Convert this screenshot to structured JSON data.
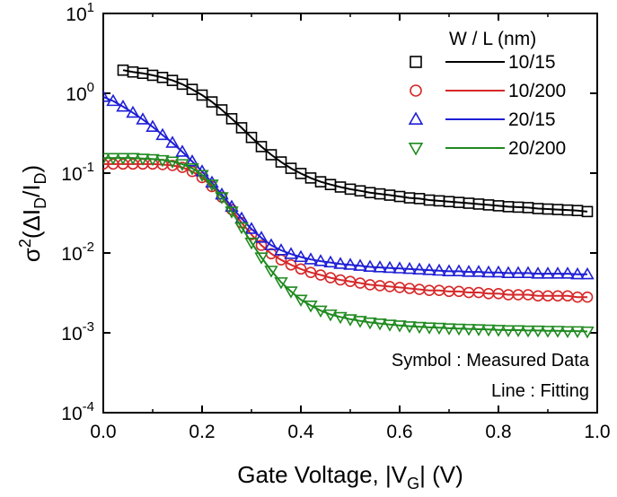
{
  "chart_data": {
    "type": "scatter",
    "xlabel_parts": {
      "main": "Gate Voltage, |V",
      "sub": "G",
      "end": "| (V)"
    },
    "ylabel_parts": {
      "sigma": "σ",
      "sup": "2",
      "open": "(ΔI",
      "sub1": "D",
      "slash": "/I",
      "sub2": "D",
      "close": ")"
    },
    "xlim": [
      0.0,
      1.0
    ],
    "ylim": [
      0.0001,
      10
    ],
    "y_scale": "log",
    "x_ticks": [
      "0.0",
      "0.2",
      "0.4",
      "0.6",
      "0.8",
      "1.0"
    ],
    "y_ticks": [
      {
        "base": "10",
        "exp": "1"
      },
      {
        "base": "10",
        "exp": "0"
      },
      {
        "base": "10",
        "exp": "-1"
      },
      {
        "base": "10",
        "exp": "-2"
      },
      {
        "base": "10",
        "exp": "-3"
      },
      {
        "base": "10",
        "exp": "-4"
      }
    ],
    "legend": {
      "title": "W / L (nm)",
      "placement": "top-right",
      "entries": [
        {
          "label": "10/15",
          "marker": "square",
          "color": "#000000"
        },
        {
          "label": "10/200",
          "marker": "circle",
          "color": "#d62728"
        },
        {
          "label": "20/15",
          "marker": "triangle-up",
          "color": "#1f1fd6"
        },
        {
          "label": "20/200",
          "marker": "triangle-down",
          "color": "#1f8a1f"
        }
      ]
    },
    "annotations": [
      "Symbol : Measured Data",
      "Line : Fitting"
    ],
    "series": [
      {
        "name": "10/15",
        "color": "#000000",
        "marker": "square",
        "x": [
          0.04,
          0.06,
          0.08,
          0.1,
          0.12,
          0.14,
          0.16,
          0.18,
          0.2,
          0.22,
          0.24,
          0.26,
          0.28,
          0.3,
          0.32,
          0.34,
          0.36,
          0.38,
          0.4,
          0.42,
          0.44,
          0.46,
          0.48,
          0.5,
          0.52,
          0.54,
          0.56,
          0.58,
          0.6,
          0.62,
          0.64,
          0.66,
          0.68,
          0.7,
          0.72,
          0.74,
          0.76,
          0.78,
          0.8,
          0.82,
          0.84,
          0.86,
          0.88,
          0.9,
          0.92,
          0.94,
          0.96,
          0.98
        ],
        "y": [
          1.95,
          1.85,
          1.78,
          1.68,
          1.58,
          1.45,
          1.3,
          1.12,
          0.95,
          0.78,
          0.62,
          0.48,
          0.37,
          0.28,
          0.215,
          0.17,
          0.138,
          0.115,
          0.099,
          0.087,
          0.078,
          0.072,
          0.067,
          0.063,
          0.06,
          0.057,
          0.055,
          0.053,
          0.051,
          0.049,
          0.048,
          0.046,
          0.045,
          0.044,
          0.043,
          0.042,
          0.041,
          0.04,
          0.039,
          0.038,
          0.0375,
          0.037,
          0.036,
          0.0355,
          0.035,
          0.0345,
          0.034,
          0.033
        ]
      },
      {
        "name": "10/200",
        "color": "#d62728",
        "marker": "circle",
        "x": [
          0.0,
          0.02,
          0.04,
          0.06,
          0.08,
          0.1,
          0.12,
          0.14,
          0.16,
          0.18,
          0.2,
          0.22,
          0.24,
          0.26,
          0.28,
          0.3,
          0.32,
          0.34,
          0.36,
          0.38,
          0.4,
          0.42,
          0.44,
          0.46,
          0.48,
          0.5,
          0.52,
          0.54,
          0.56,
          0.58,
          0.6,
          0.62,
          0.64,
          0.66,
          0.68,
          0.7,
          0.72,
          0.74,
          0.76,
          0.78,
          0.8,
          0.82,
          0.84,
          0.86,
          0.88,
          0.9,
          0.92,
          0.94,
          0.96,
          0.98
        ],
        "y": [
          0.13,
          0.13,
          0.13,
          0.13,
          0.13,
          0.13,
          0.128,
          0.125,
          0.118,
          0.105,
          0.088,
          0.068,
          0.05,
          0.035,
          0.024,
          0.017,
          0.0125,
          0.0098,
          0.0082,
          0.0071,
          0.0063,
          0.0057,
          0.0053,
          0.0049,
          0.0046,
          0.0044,
          0.0042,
          0.004,
          0.0039,
          0.0038,
          0.0037,
          0.0036,
          0.0035,
          0.0034,
          0.0034,
          0.0033,
          0.0033,
          0.0032,
          0.0032,
          0.0031,
          0.0031,
          0.003,
          0.003,
          0.003,
          0.0029,
          0.0029,
          0.0029,
          0.0029,
          0.0028,
          0.0028
        ]
      },
      {
        "name": "20/15",
        "color": "#1f1fd6",
        "marker": "triangle-up",
        "x": [
          0.0,
          0.02,
          0.04,
          0.06,
          0.08,
          0.1,
          0.12,
          0.14,
          0.16,
          0.18,
          0.2,
          0.22,
          0.24,
          0.26,
          0.28,
          0.3,
          0.32,
          0.34,
          0.36,
          0.38,
          0.4,
          0.42,
          0.44,
          0.46,
          0.48,
          0.5,
          0.52,
          0.54,
          0.56,
          0.58,
          0.6,
          0.62,
          0.64,
          0.66,
          0.68,
          0.7,
          0.72,
          0.74,
          0.76,
          0.78,
          0.8,
          0.82,
          0.84,
          0.86,
          0.88,
          0.9,
          0.92,
          0.94,
          0.96,
          0.98
        ],
        "y": [
          0.9,
          0.8,
          0.68,
          0.57,
          0.47,
          0.38,
          0.3,
          0.24,
          0.185,
          0.14,
          0.105,
          0.076,
          0.054,
          0.038,
          0.027,
          0.02,
          0.0155,
          0.0125,
          0.0108,
          0.0097,
          0.0089,
          0.0083,
          0.0079,
          0.0076,
          0.0073,
          0.0071,
          0.0069,
          0.0067,
          0.0066,
          0.0065,
          0.0064,
          0.0063,
          0.0062,
          0.0061,
          0.006,
          0.0059,
          0.0059,
          0.0058,
          0.0058,
          0.0057,
          0.0057,
          0.0056,
          0.0056,
          0.0056,
          0.0055,
          0.0055,
          0.0055,
          0.0055,
          0.0054,
          0.0054
        ]
      },
      {
        "name": "20/200",
        "color": "#1f8a1f",
        "marker": "triangle-down",
        "x": [
          0.0,
          0.02,
          0.04,
          0.06,
          0.08,
          0.1,
          0.12,
          0.14,
          0.16,
          0.18,
          0.2,
          0.22,
          0.24,
          0.26,
          0.28,
          0.3,
          0.32,
          0.34,
          0.36,
          0.38,
          0.4,
          0.42,
          0.44,
          0.46,
          0.48,
          0.5,
          0.52,
          0.54,
          0.56,
          0.58,
          0.6,
          0.62,
          0.64,
          0.66,
          0.68,
          0.7,
          0.72,
          0.74,
          0.76,
          0.78,
          0.8,
          0.82,
          0.84,
          0.86,
          0.88,
          0.9,
          0.92,
          0.94,
          0.96,
          0.98
        ],
        "y": [
          0.155,
          0.155,
          0.155,
          0.155,
          0.152,
          0.15,
          0.146,
          0.14,
          0.13,
          0.115,
          0.095,
          0.072,
          0.05,
          0.033,
          0.021,
          0.0135,
          0.0088,
          0.006,
          0.0043,
          0.0033,
          0.0026,
          0.0022,
          0.0019,
          0.0017,
          0.00158,
          0.00148,
          0.00141,
          0.00135,
          0.00131,
          0.00127,
          0.00124,
          0.00121,
          0.00119,
          0.00117,
          0.00116,
          0.00114,
          0.00113,
          0.00112,
          0.00111,
          0.0011,
          0.00109,
          0.00108,
          0.00108,
          0.00107,
          0.00107,
          0.00106,
          0.00106,
          0.00105,
          0.00105,
          0.00104
        ]
      }
    ]
  }
}
